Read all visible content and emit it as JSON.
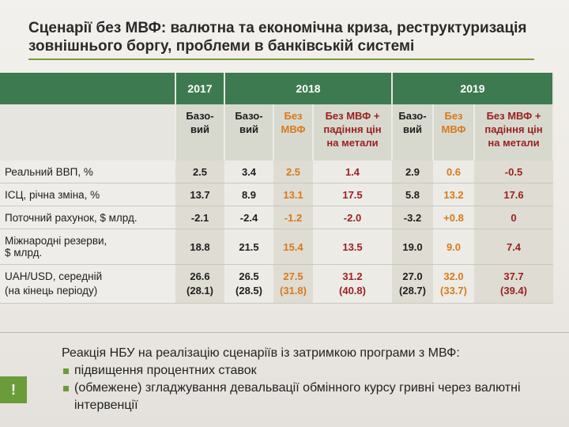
{
  "title": {
    "line1": "Сценарії без МВФ: валютна та економічна криза, реструктуризація",
    "line2": "зовнішнього боргу, проблеми в банківській системі"
  },
  "table": {
    "years": [
      "2017",
      "2018",
      "2019"
    ],
    "subheaders": [
      {
        "l1": "Базо-",
        "l2": "вий",
        "l3": ""
      },
      {
        "l1": "Базо-",
        "l2": "вий",
        "l3": ""
      },
      {
        "l1": "Без",
        "l2": "МВФ",
        "l3": ""
      },
      {
        "l1": "Без МВФ +",
        "l2": "падіння цін",
        "l3": "на метали"
      },
      {
        "l1": "Базо-",
        "l2": "вий",
        "l3": ""
      },
      {
        "l1": "Без",
        "l2": "МВФ",
        "l3": ""
      },
      {
        "l1": "Без МВФ +",
        "l2": "падіння цін",
        "l3": "на метали"
      }
    ],
    "rows": [
      {
        "label1": "Реальний ВВП, %",
        "label2": "",
        "values": [
          [
            "2.5",
            ""
          ],
          [
            "3.4",
            ""
          ],
          [
            "2.5",
            ""
          ],
          [
            "1.4",
            ""
          ],
          [
            "2.9",
            ""
          ],
          [
            "0.6",
            ""
          ],
          [
            "-0.5",
            ""
          ]
        ]
      },
      {
        "label1": "ІСЦ, річна зміна, %",
        "label2": "",
        "values": [
          [
            "13.7",
            ""
          ],
          [
            "8.9",
            ""
          ],
          [
            "13.1",
            ""
          ],
          [
            "17.5",
            ""
          ],
          [
            "5.8",
            ""
          ],
          [
            "13.2",
            ""
          ],
          [
            "17.6",
            ""
          ]
        ]
      },
      {
        "label1": "Поточний рахунок, $ млрд.",
        "label2": "",
        "values": [
          [
            "-2.1",
            ""
          ],
          [
            "-2.4",
            ""
          ],
          [
            "-1.2",
            ""
          ],
          [
            "-2.0",
            ""
          ],
          [
            "-3.2",
            ""
          ],
          [
            "+0.8",
            ""
          ],
          [
            "0",
            ""
          ]
        ]
      },
      {
        "label1": "Міжнародні резерви,",
        "label2": "$ млрд.",
        "values": [
          [
            "18.8",
            ""
          ],
          [
            "21.5",
            ""
          ],
          [
            "15.4",
            ""
          ],
          [
            "13.5",
            ""
          ],
          [
            "19.0",
            ""
          ],
          [
            "9.0",
            ""
          ],
          [
            "7.4",
            ""
          ]
        ]
      },
      {
        "label1": "UAH/USD, середній",
        "label2": "(на кінець періоду)",
        "values": [
          [
            "26.6",
            "(28.1)"
          ],
          [
            "26.5",
            "(28.5)"
          ],
          [
            "27.5",
            "(31.8)"
          ],
          [
            "31.2",
            "(40.8)"
          ],
          [
            "27.0",
            "(28.7)"
          ],
          [
            "32.0",
            "(33.7)"
          ],
          [
            "37.7",
            "(39.4)"
          ]
        ]
      }
    ]
  },
  "callout": {
    "badge": "!",
    "heading": "Реакція НБУ на реалізацію сценаріїв із затримкою програми з МВФ:",
    "bullets": [
      "підвищення процентних ставок",
      "(обмежене) згладжування девальвації обмінного курсу гривні через валютні інтервенції"
    ]
  },
  "colors": {
    "header_green": "#3e7a4f",
    "accent_orange": "#d77a1c",
    "accent_darkred": "#9b1f1f",
    "badge_green": "#6a9c3a"
  }
}
